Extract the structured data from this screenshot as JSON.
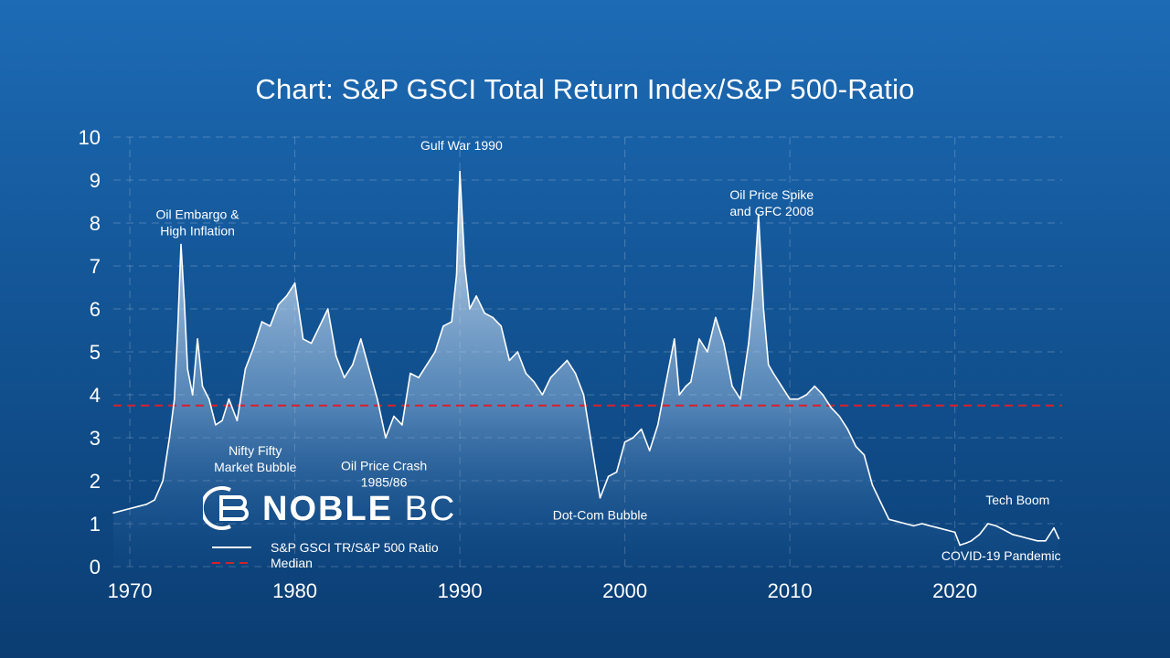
{
  "brand": {
    "name_bold": "NOBLE",
    "name_light": "BC"
  },
  "colors": {
    "background_top": "#1d6bb5",
    "background_bottom": "#0b3d72",
    "series_line": "#ffffff",
    "median_line": "#d9202a"
  },
  "chart_data": {
    "type": "area",
    "title": "Chart: S&P GSCI Total Return Index/S&P 500-Ratio",
    "xlabel": "",
    "ylabel": "",
    "xlim": [
      1969,
      2026.5
    ],
    "ylim": [
      0,
      10
    ],
    "x_ticks": [
      "1970",
      "1980",
      "1990",
      "2000",
      "2010",
      "2020"
    ],
    "y_ticks": [
      "0",
      "1",
      "2",
      "3",
      "4",
      "5",
      "6",
      "7",
      "8",
      "9",
      "10"
    ],
    "grid": true,
    "legend": {
      "placement": "bottom-left",
      "entries": [
        {
          "label": "S&P GSCI TR/S&P 500 Ratio",
          "style": "solid",
          "color": "#ffffff"
        },
        {
          "label": "Median",
          "style": "dashed",
          "color": "#d9202a"
        }
      ]
    },
    "median": 3.75,
    "series": [
      {
        "name": "S&P GSCI TR/S&P 500 Ratio",
        "points": [
          [
            1969.0,
            1.25
          ],
          [
            1969.5,
            1.3
          ],
          [
            1970.0,
            1.35
          ],
          [
            1970.5,
            1.4
          ],
          [
            1971.0,
            1.45
          ],
          [
            1971.5,
            1.55
          ],
          [
            1972.0,
            2.0
          ],
          [
            1972.4,
            3.0
          ],
          [
            1972.7,
            3.9
          ],
          [
            1972.9,
            5.5
          ],
          [
            1973.1,
            7.5
          ],
          [
            1973.3,
            6.2
          ],
          [
            1973.5,
            4.6
          ],
          [
            1973.8,
            4.0
          ],
          [
            1974.1,
            5.3
          ],
          [
            1974.4,
            4.2
          ],
          [
            1974.8,
            3.9
          ],
          [
            1975.2,
            3.3
          ],
          [
            1975.6,
            3.4
          ],
          [
            1976.0,
            3.9
          ],
          [
            1976.5,
            3.4
          ],
          [
            1977.0,
            4.6
          ],
          [
            1977.5,
            5.1
          ],
          [
            1978.0,
            5.7
          ],
          [
            1978.5,
            5.6
          ],
          [
            1979.0,
            6.1
          ],
          [
            1979.5,
            6.3
          ],
          [
            1980.0,
            6.6
          ],
          [
            1980.5,
            5.3
          ],
          [
            1981.0,
            5.2
          ],
          [
            1981.5,
            5.6
          ],
          [
            1982.0,
            6.0
          ],
          [
            1982.5,
            4.9
          ],
          [
            1983.0,
            4.4
          ],
          [
            1983.5,
            4.7
          ],
          [
            1984.0,
            5.3
          ],
          [
            1984.5,
            4.6
          ],
          [
            1985.0,
            3.9
          ],
          [
            1985.5,
            3.0
          ],
          [
            1986.0,
            3.5
          ],
          [
            1986.5,
            3.3
          ],
          [
            1987.0,
            4.5
          ],
          [
            1987.5,
            4.4
          ],
          [
            1988.0,
            4.7
          ],
          [
            1988.5,
            5.0
          ],
          [
            1989.0,
            5.6
          ],
          [
            1989.5,
            5.7
          ],
          [
            1989.8,
            6.8
          ],
          [
            1990.0,
            9.2
          ],
          [
            1990.3,
            7.0
          ],
          [
            1990.6,
            6.0
          ],
          [
            1991.0,
            6.3
          ],
          [
            1991.5,
            5.9
          ],
          [
            1992.0,
            5.8
          ],
          [
            1992.5,
            5.6
          ],
          [
            1993.0,
            4.8
          ],
          [
            1993.5,
            5.0
          ],
          [
            1994.0,
            4.5
          ],
          [
            1994.5,
            4.3
          ],
          [
            1995.0,
            4.0
          ],
          [
            1995.5,
            4.4
          ],
          [
            1996.0,
            4.6
          ],
          [
            1996.5,
            4.8
          ],
          [
            1997.0,
            4.5
          ],
          [
            1997.5,
            4.0
          ],
          [
            1998.0,
            2.8
          ],
          [
            1998.5,
            1.6
          ],
          [
            1999.0,
            2.1
          ],
          [
            1999.5,
            2.2
          ],
          [
            2000.0,
            2.9
          ],
          [
            2000.5,
            3.0
          ],
          [
            2001.0,
            3.2
          ],
          [
            2001.5,
            2.7
          ],
          [
            2002.0,
            3.3
          ],
          [
            2002.5,
            4.3
          ],
          [
            2003.0,
            5.3
          ],
          [
            2003.3,
            4.0
          ],
          [
            2003.7,
            4.2
          ],
          [
            2004.0,
            4.3
          ],
          [
            2004.5,
            5.3
          ],
          [
            2005.0,
            5.0
          ],
          [
            2005.5,
            5.8
          ],
          [
            2006.0,
            5.2
          ],
          [
            2006.5,
            4.2
          ],
          [
            2007.0,
            3.9
          ],
          [
            2007.5,
            5.2
          ],
          [
            2007.8,
            6.4
          ],
          [
            2008.1,
            8.2
          ],
          [
            2008.4,
            6.0
          ],
          [
            2008.7,
            4.7
          ],
          [
            2009.0,
            4.5
          ],
          [
            2009.5,
            4.2
          ],
          [
            2010.0,
            3.9
          ],
          [
            2010.5,
            3.9
          ],
          [
            2011.0,
            4.0
          ],
          [
            2011.5,
            4.2
          ],
          [
            2012.0,
            4.0
          ],
          [
            2012.5,
            3.7
          ],
          [
            2013.0,
            3.5
          ],
          [
            2013.5,
            3.2
          ],
          [
            2014.0,
            2.8
          ],
          [
            2014.5,
            2.6
          ],
          [
            2015.0,
            1.9
          ],
          [
            2015.5,
            1.5
          ],
          [
            2016.0,
            1.1
          ],
          [
            2016.5,
            1.05
          ],
          [
            2017.0,
            1.0
          ],
          [
            2017.5,
            0.95
          ],
          [
            2018.0,
            1.0
          ],
          [
            2018.5,
            0.95
          ],
          [
            2019.0,
            0.9
          ],
          [
            2019.5,
            0.85
          ],
          [
            2020.0,
            0.8
          ],
          [
            2020.3,
            0.5
          ],
          [
            2020.7,
            0.55
          ],
          [
            2021.0,
            0.6
          ],
          [
            2021.5,
            0.75
          ],
          [
            2022.0,
            1.0
          ],
          [
            2022.5,
            0.95
          ],
          [
            2023.0,
            0.85
          ],
          [
            2023.5,
            0.75
          ],
          [
            2024.0,
            0.7
          ],
          [
            2024.5,
            0.65
          ],
          [
            2025.0,
            0.6
          ],
          [
            2025.5,
            0.6
          ],
          [
            2026.0,
            0.9
          ],
          [
            2026.3,
            0.65
          ]
        ]
      }
    ],
    "annotations": [
      {
        "lines": [
          "Oil Embargo &",
          "High Inflation"
        ],
        "x": 1974.1,
        "y": 8.1
      },
      {
        "lines": [
          "Nifty Fifty",
          "Market Bubble"
        ],
        "x": 1977.6,
        "y": 2.6
      },
      {
        "lines": [
          "Gulf War 1990"
        ],
        "x": 1990.1,
        "y": 9.7
      },
      {
        "lines": [
          "Oil Price Crash",
          "1985/86"
        ],
        "x": 1985.4,
        "y": 2.25
      },
      {
        "lines": [
          "Oil Price Spike",
          "and GFC 2008"
        ],
        "x": 2008.9,
        "y": 8.55
      },
      {
        "lines": [
          "Dot-Com Bubble"
        ],
        "x": 1998.5,
        "y": 1.1
      },
      {
        "lines": [
          "Tech Boom"
        ],
        "x": 2023.8,
        "y": 1.45
      },
      {
        "lines": [
          "COVID-19 Pandemic"
        ],
        "x": 2022.8,
        "y": 0.15
      }
    ]
  }
}
